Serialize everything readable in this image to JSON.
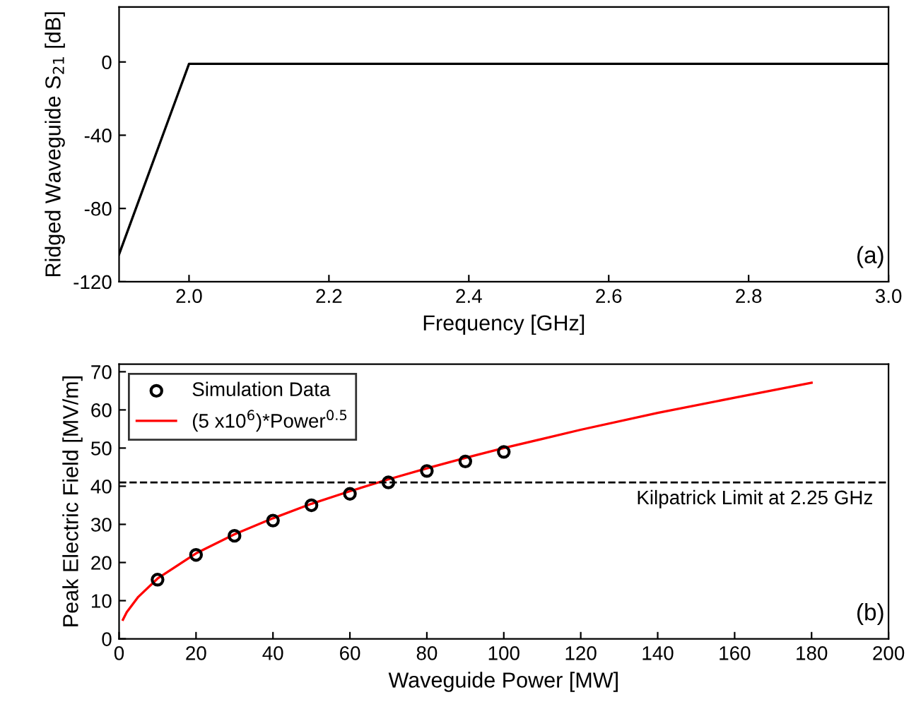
{
  "chart_data": [
    {
      "type": "line",
      "xlabel": "Frequency [GHz]",
      "ylabel": "Ridged Waveguide S$_{21}$ [dB]",
      "x": [
        1.9,
        2.0,
        2.1,
        3.0
      ],
      "series": [
        {
          "color": "#000000",
          "values": [
            -105,
            -1,
            -1,
            -1
          ]
        }
      ],
      "xlim": [
        1.9,
        3.0
      ],
      "xticks": [
        {
          "value": 2.0,
          "label": "2.0"
        },
        2.2,
        2.4,
        2.6,
        2.8,
        {
          "value": 3.0,
          "label": "3.0"
        }
      ],
      "ylim": [
        -120,
        30
      ],
      "yticks": [
        -120,
        -80,
        -40,
        0
      ],
      "grid": false,
      "legend": false,
      "annotations": [
        "(a)"
      ]
    },
    {
      "type": "line",
      "xlabel": "Waveguide Power [MW]",
      "ylabel": "Peak Electric Field [MV/m]",
      "series": [
        {
          "name": "Simulation Data",
          "type": "scatter",
          "color": "#000000",
          "marker": "circle",
          "x": [
            10,
            20,
            30,
            40,
            50,
            60,
            70,
            80,
            90,
            100
          ],
          "values": [
            15.5,
            22,
            27,
            31,
            35,
            38,
            41,
            44,
            46.5,
            49
          ]
        },
        {
          "name": "(5 x10$^{6}$)*Power$^{0.5}$",
          "type": "line",
          "color": "#ff0000",
          "x": [
            1,
            2,
            5,
            10,
            20,
            30,
            40,
            50,
            60,
            70,
            80,
            90,
            100,
            120,
            140,
            160,
            180
          ],
          "values": [
            5,
            7,
            11,
            15.8,
            22.4,
            27.4,
            31.6,
            35.4,
            38.7,
            41.8,
            44.7,
            47.4,
            50,
            54.8,
            59.2,
            63.2,
            67.1
          ]
        }
      ],
      "xlim": [
        0,
        200
      ],
      "xticks": [
        0,
        20,
        40,
        60,
        80,
        100,
        120,
        140,
        160,
        180,
        200
      ],
      "ylim": [
        0,
        72
      ],
      "yticks": [
        0,
        10,
        20,
        30,
        40,
        50,
        60,
        70
      ],
      "ref_lines": [
        {
          "axis": "y",
          "value": 41,
          "label": "Kilpatrick Limit at 2.25 GHz",
          "color": "#000000",
          "line_style": "dashed"
        }
      ],
      "grid": false,
      "legend": "top left",
      "annotations": [
        "(b)"
      ]
    }
  ]
}
